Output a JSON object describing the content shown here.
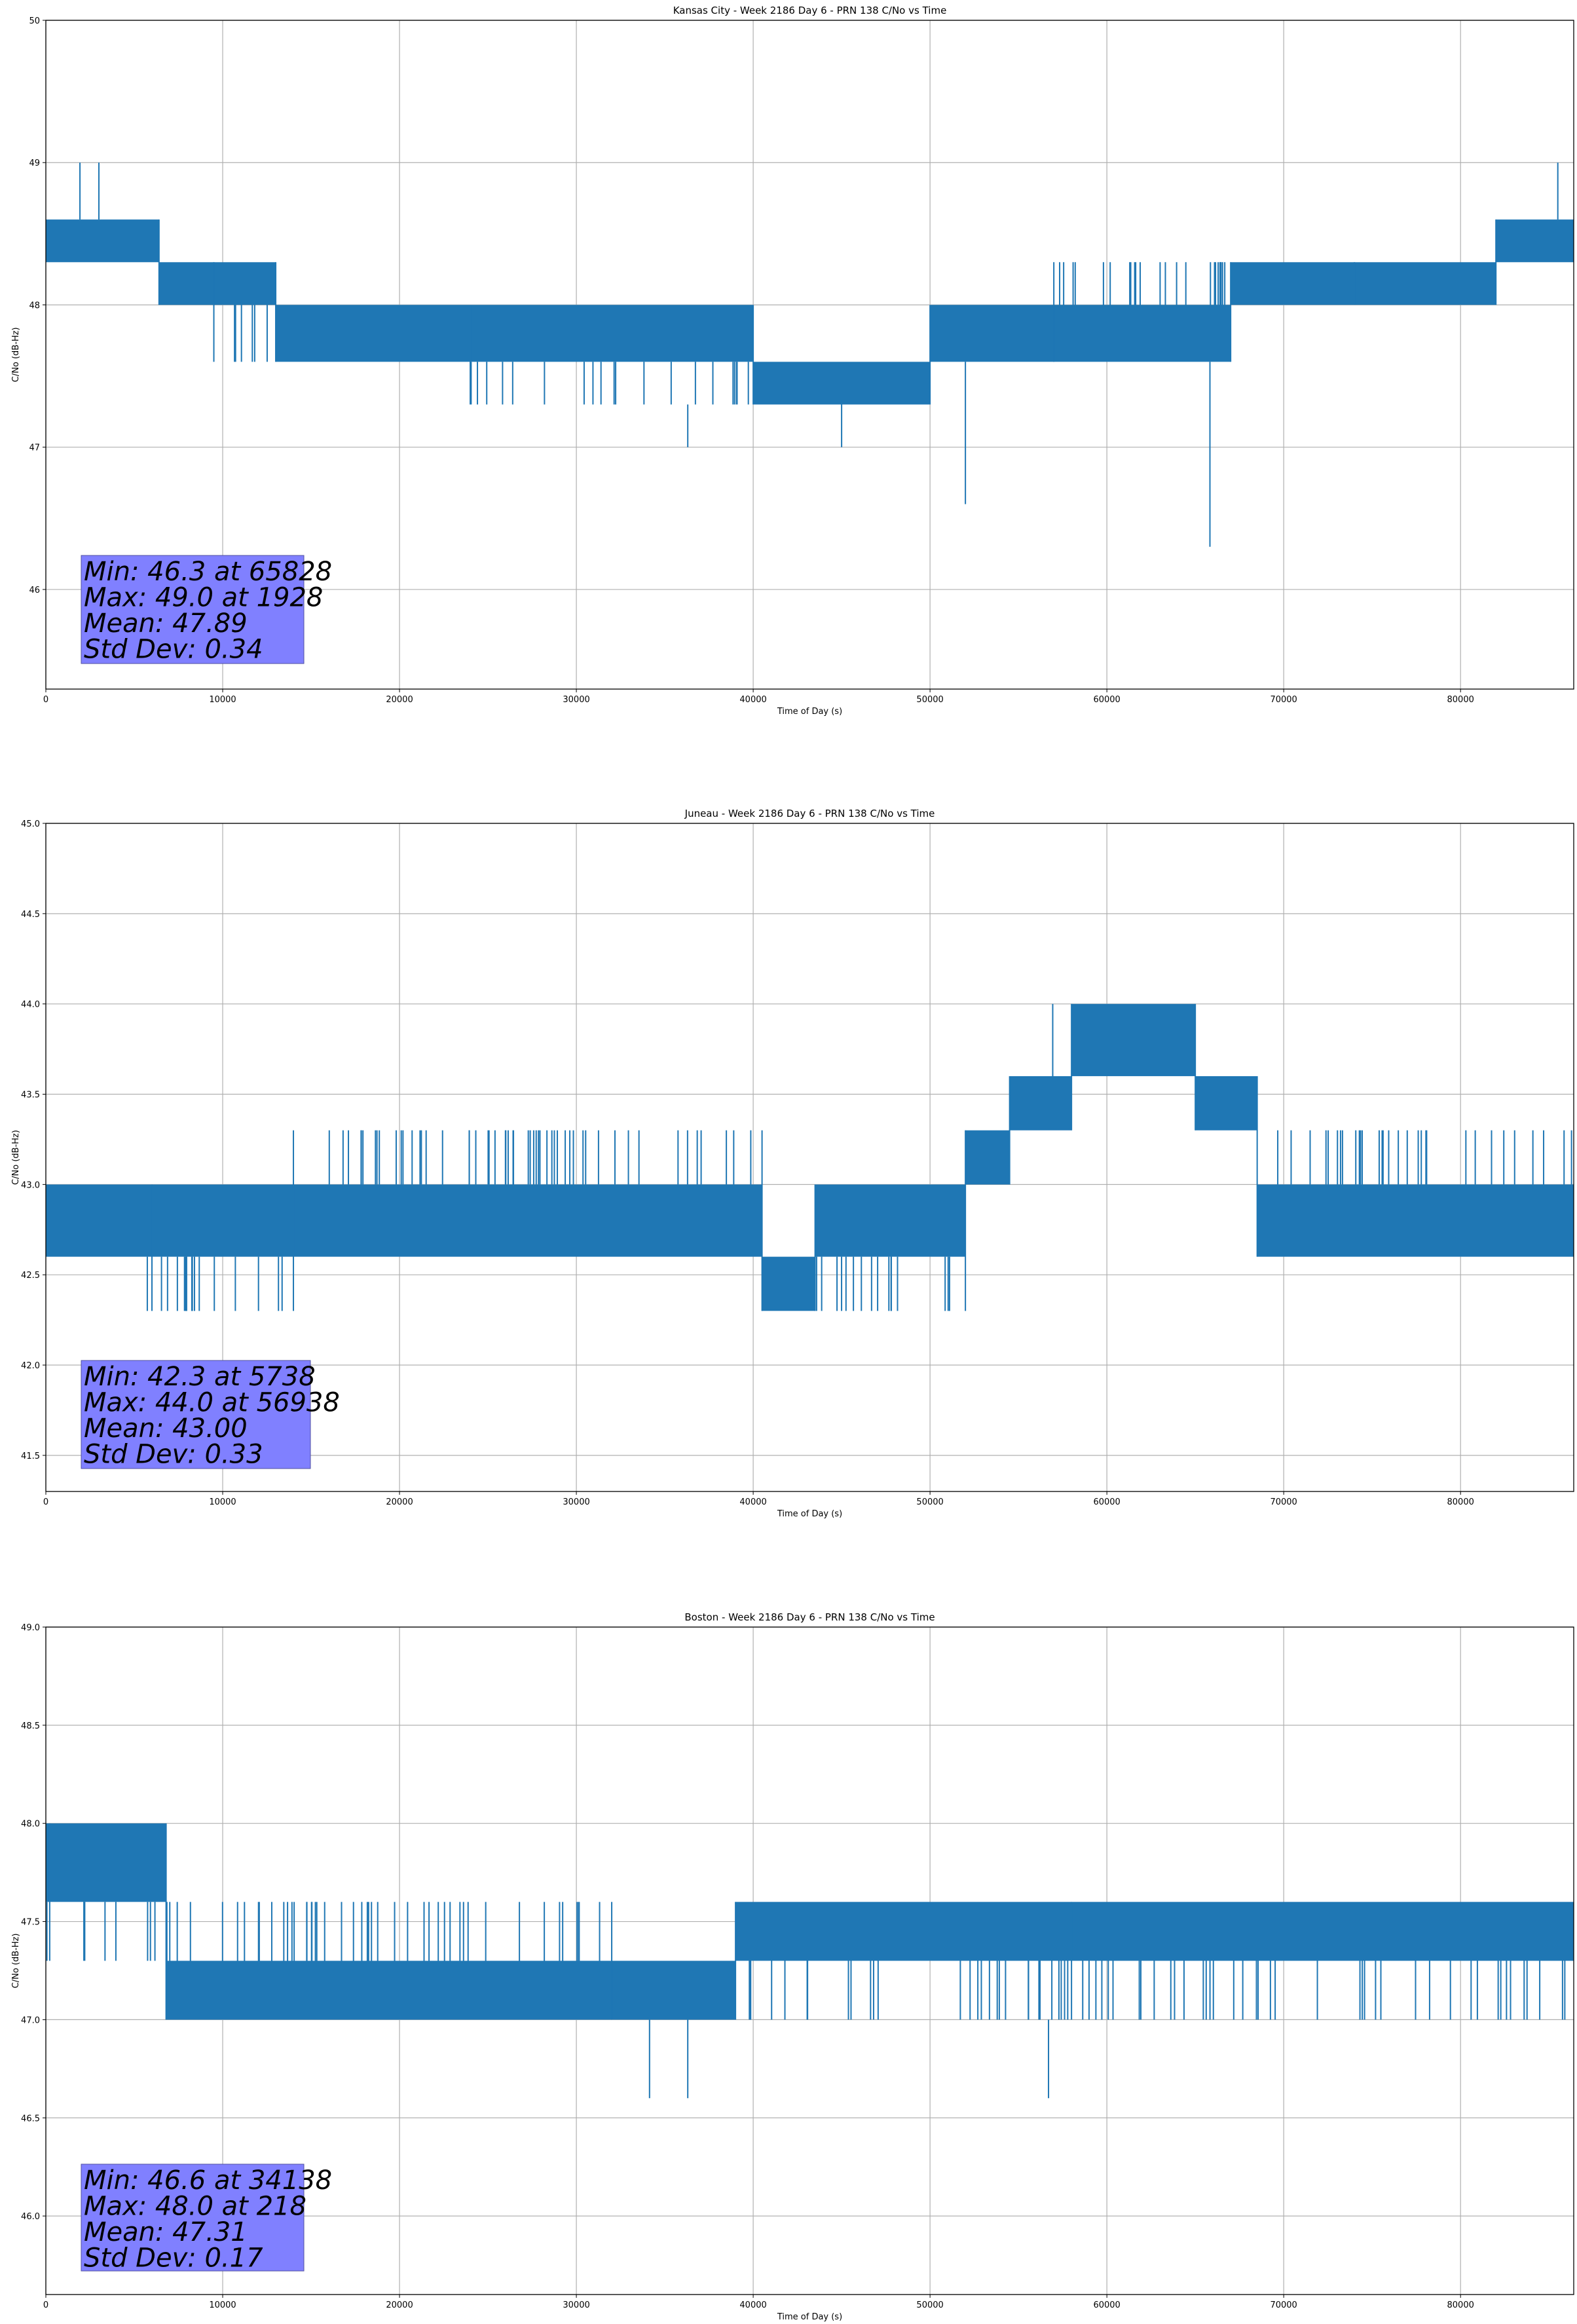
{
  "chart_data": [
    {
      "type": "line",
      "title": "Kansas City - Week 2186 Day 6 - PRN 138 C/No vs Time",
      "xlabel": "Time of Day (s)",
      "ylabel": "C/No (dB-Hz)",
      "xlim": [
        0,
        86400
      ],
      "ylim": [
        45.3,
        50
      ],
      "xticks": [
        0,
        10000,
        20000,
        30000,
        40000,
        50000,
        60000,
        70000,
        80000
      ],
      "yticks": [
        46,
        47,
        48,
        49,
        50
      ],
      "xtick_labels": [
        "0",
        "10000",
        "20000",
        "30000",
        "40000",
        "50000",
        "60000",
        "70000",
        "80000"
      ],
      "ytick_labels": [
        "46",
        "47",
        "48",
        "49",
        "50"
      ],
      "grid": true,
      "color": "#1f77b4",
      "series_description": "C/No quantized to 0.3/0.4 dB steps, rapid toggling between adjacent levels",
      "segments": [
        {
          "x0": 0,
          "x1": 6400,
          "levels": [
            48.3,
            48.6
          ]
        },
        {
          "x0": 6400,
          "x1": 9500,
          "levels": [
            48.0,
            48.3
          ]
        },
        {
          "x0": 9500,
          "x1": 13000,
          "levels": [
            47.6,
            48.0,
            48.3
          ]
        },
        {
          "x0": 13000,
          "x1": 24000,
          "levels": [
            47.6,
            48.0
          ]
        },
        {
          "x0": 24000,
          "x1": 40000,
          "levels": [
            47.3,
            47.6,
            48.0
          ]
        },
        {
          "x0": 40000,
          "x1": 50000,
          "levels": [
            47.3,
            47.6
          ]
        },
        {
          "x0": 50000,
          "x1": 57000,
          "levels": [
            47.6,
            48.0
          ]
        },
        {
          "x0": 57000,
          "x1": 67000,
          "levels": [
            47.6,
            48.0,
            48.3
          ]
        },
        {
          "x0": 67000,
          "x1": 74000,
          "levels": [
            48.0,
            48.3
          ]
        },
        {
          "x0": 74000,
          "x1": 82000,
          "levels": [
            48.0,
            48.3
          ]
        },
        {
          "x0": 82000,
          "x1": 86400,
          "levels": [
            48.3,
            48.6
          ]
        }
      ],
      "spikes": [
        {
          "x": 1928,
          "y": 49.0
        },
        {
          "x": 3000,
          "y": 49.0
        },
        {
          "x": 36300,
          "y": 47.0
        },
        {
          "x": 45000,
          "y": 47.0
        },
        {
          "x": 52000,
          "y": 46.6
        },
        {
          "x": 65828,
          "y": 46.3
        },
        {
          "x": 85500,
          "y": 49.0
        }
      ],
      "stats": {
        "min_line": "Min: 46.3 at 65828",
        "max_line": "Max: 49.0 at 1928",
        "mean_line": "Mean: 47.89",
        "std_line": "Std Dev: 0.34"
      },
      "stats_box_color": "#8080ff"
    },
    {
      "type": "line",
      "title": "Juneau - Week 2186 Day 6 - PRN 138 C/No vs Time",
      "xlabel": "Time of Day (s)",
      "ylabel": "C/No (dB-Hz)",
      "xlim": [
        0,
        86400
      ],
      "ylim": [
        41.3,
        45.0
      ],
      "xticks": [
        0,
        10000,
        20000,
        30000,
        40000,
        50000,
        60000,
        70000,
        80000
      ],
      "yticks": [
        41.5,
        42.0,
        42.5,
        43.0,
        43.5,
        44.0,
        44.5,
        45.0
      ],
      "xtick_labels": [
        "0",
        "10000",
        "20000",
        "30000",
        "40000",
        "50000",
        "60000",
        "70000",
        "80000"
      ],
      "ytick_labels": [
        "41.5",
        "42.0",
        "42.5",
        "43.0",
        "43.5",
        "44.0",
        "44.5",
        "45.0"
      ],
      "grid": true,
      "color": "#1f77b4",
      "series_description": "C/No quantized to 0.3/0.4 dB steps, rapid toggling between adjacent levels",
      "segments": [
        {
          "x0": 0,
          "x1": 6000,
          "levels": [
            42.6,
            43.0
          ]
        },
        {
          "x0": 6000,
          "x1": 14000,
          "levels": [
            42.3,
            42.6,
            43.0
          ]
        },
        {
          "x0": 14000,
          "x1": 40500,
          "levels": [
            42.6,
            43.0,
            43.3
          ]
        },
        {
          "x0": 40500,
          "x1": 43500,
          "levels": [
            42.3,
            42.6
          ]
        },
        {
          "x0": 43500,
          "x1": 52000,
          "levels": [
            42.3,
            42.6,
            43.0
          ]
        },
        {
          "x0": 52000,
          "x1": 54500,
          "levels": [
            43.0,
            43.3
          ]
        },
        {
          "x0": 54500,
          "x1": 58000,
          "levels": [
            43.3,
            43.6
          ]
        },
        {
          "x0": 58000,
          "x1": 65000,
          "levels": [
            43.6,
            44.0
          ]
        },
        {
          "x0": 65000,
          "x1": 68500,
          "levels": [
            43.3,
            43.6
          ]
        },
        {
          "x0": 68500,
          "x1": 86400,
          "levels": [
            42.6,
            43.0,
            43.3
          ]
        }
      ],
      "spikes": [
        {
          "x": 5738,
          "y": 42.3
        },
        {
          "x": 10200,
          "y": 42.3
        },
        {
          "x": 56938,
          "y": 44.0
        }
      ],
      "stats": {
        "min_line": "Min: 42.3 at 5738",
        "max_line": "Max: 44.0 at 56938",
        "mean_line": "Mean: 43.00",
        "std_line": "Std Dev: 0.33"
      },
      "stats_box_color": "#8080ff"
    },
    {
      "type": "line",
      "title": "Boston - Week 2186 Day 6 - PRN 138 C/No vs Time",
      "xlabel": "Time of Day (s)",
      "ylabel": "C/No (dB-Hz)",
      "xlim": [
        0,
        86400
      ],
      "ylim": [
        45.6,
        49.0
      ],
      "xticks": [
        0,
        10000,
        20000,
        30000,
        40000,
        50000,
        60000,
        70000,
        80000
      ],
      "yticks": [
        46.0,
        46.5,
        47.0,
        47.5,
        48.0,
        48.5,
        49.0
      ],
      "xtick_labels": [
        "0",
        "10000",
        "20000",
        "30000",
        "40000",
        "50000",
        "60000",
        "70000",
        "80000"
      ],
      "ytick_labels": [
        "46.0",
        "46.5",
        "47.0",
        "47.5",
        "48.0",
        "48.5",
        "49.0"
      ],
      "grid": true,
      "color": "#1f77b4",
      "series_description": "C/No quantized to 0.3/0.4 dB steps, rapid toggling between adjacent levels",
      "segments": [
        {
          "x0": 0,
          "x1": 6800,
          "levels": [
            47.3,
            47.6,
            48.0
          ]
        },
        {
          "x0": 6800,
          "x1": 32000,
          "levels": [
            47.0,
            47.3,
            47.6
          ]
        },
        {
          "x0": 32000,
          "x1": 39000,
          "levels": [
            47.0,
            47.3
          ]
        },
        {
          "x0": 39000,
          "x1": 58000,
          "levels": [
            47.0,
            47.3,
            47.6
          ]
        },
        {
          "x0": 58000,
          "x1": 86400,
          "levels": [
            47.0,
            47.3,
            47.6
          ]
        }
      ],
      "spikes": [
        {
          "x": 218,
          "y": 48.0
        },
        {
          "x": 34138,
          "y": 46.6
        },
        {
          "x": 36300,
          "y": 46.6
        },
        {
          "x": 56700,
          "y": 46.6
        }
      ],
      "stats": {
        "min_line": "Min: 46.6 at 34138",
        "max_line": "Max: 48.0 at 218",
        "mean_line": "Mean: 47.31",
        "std_line": "Std Dev: 0.17"
      },
      "stats_box_color": "#8080ff"
    }
  ]
}
